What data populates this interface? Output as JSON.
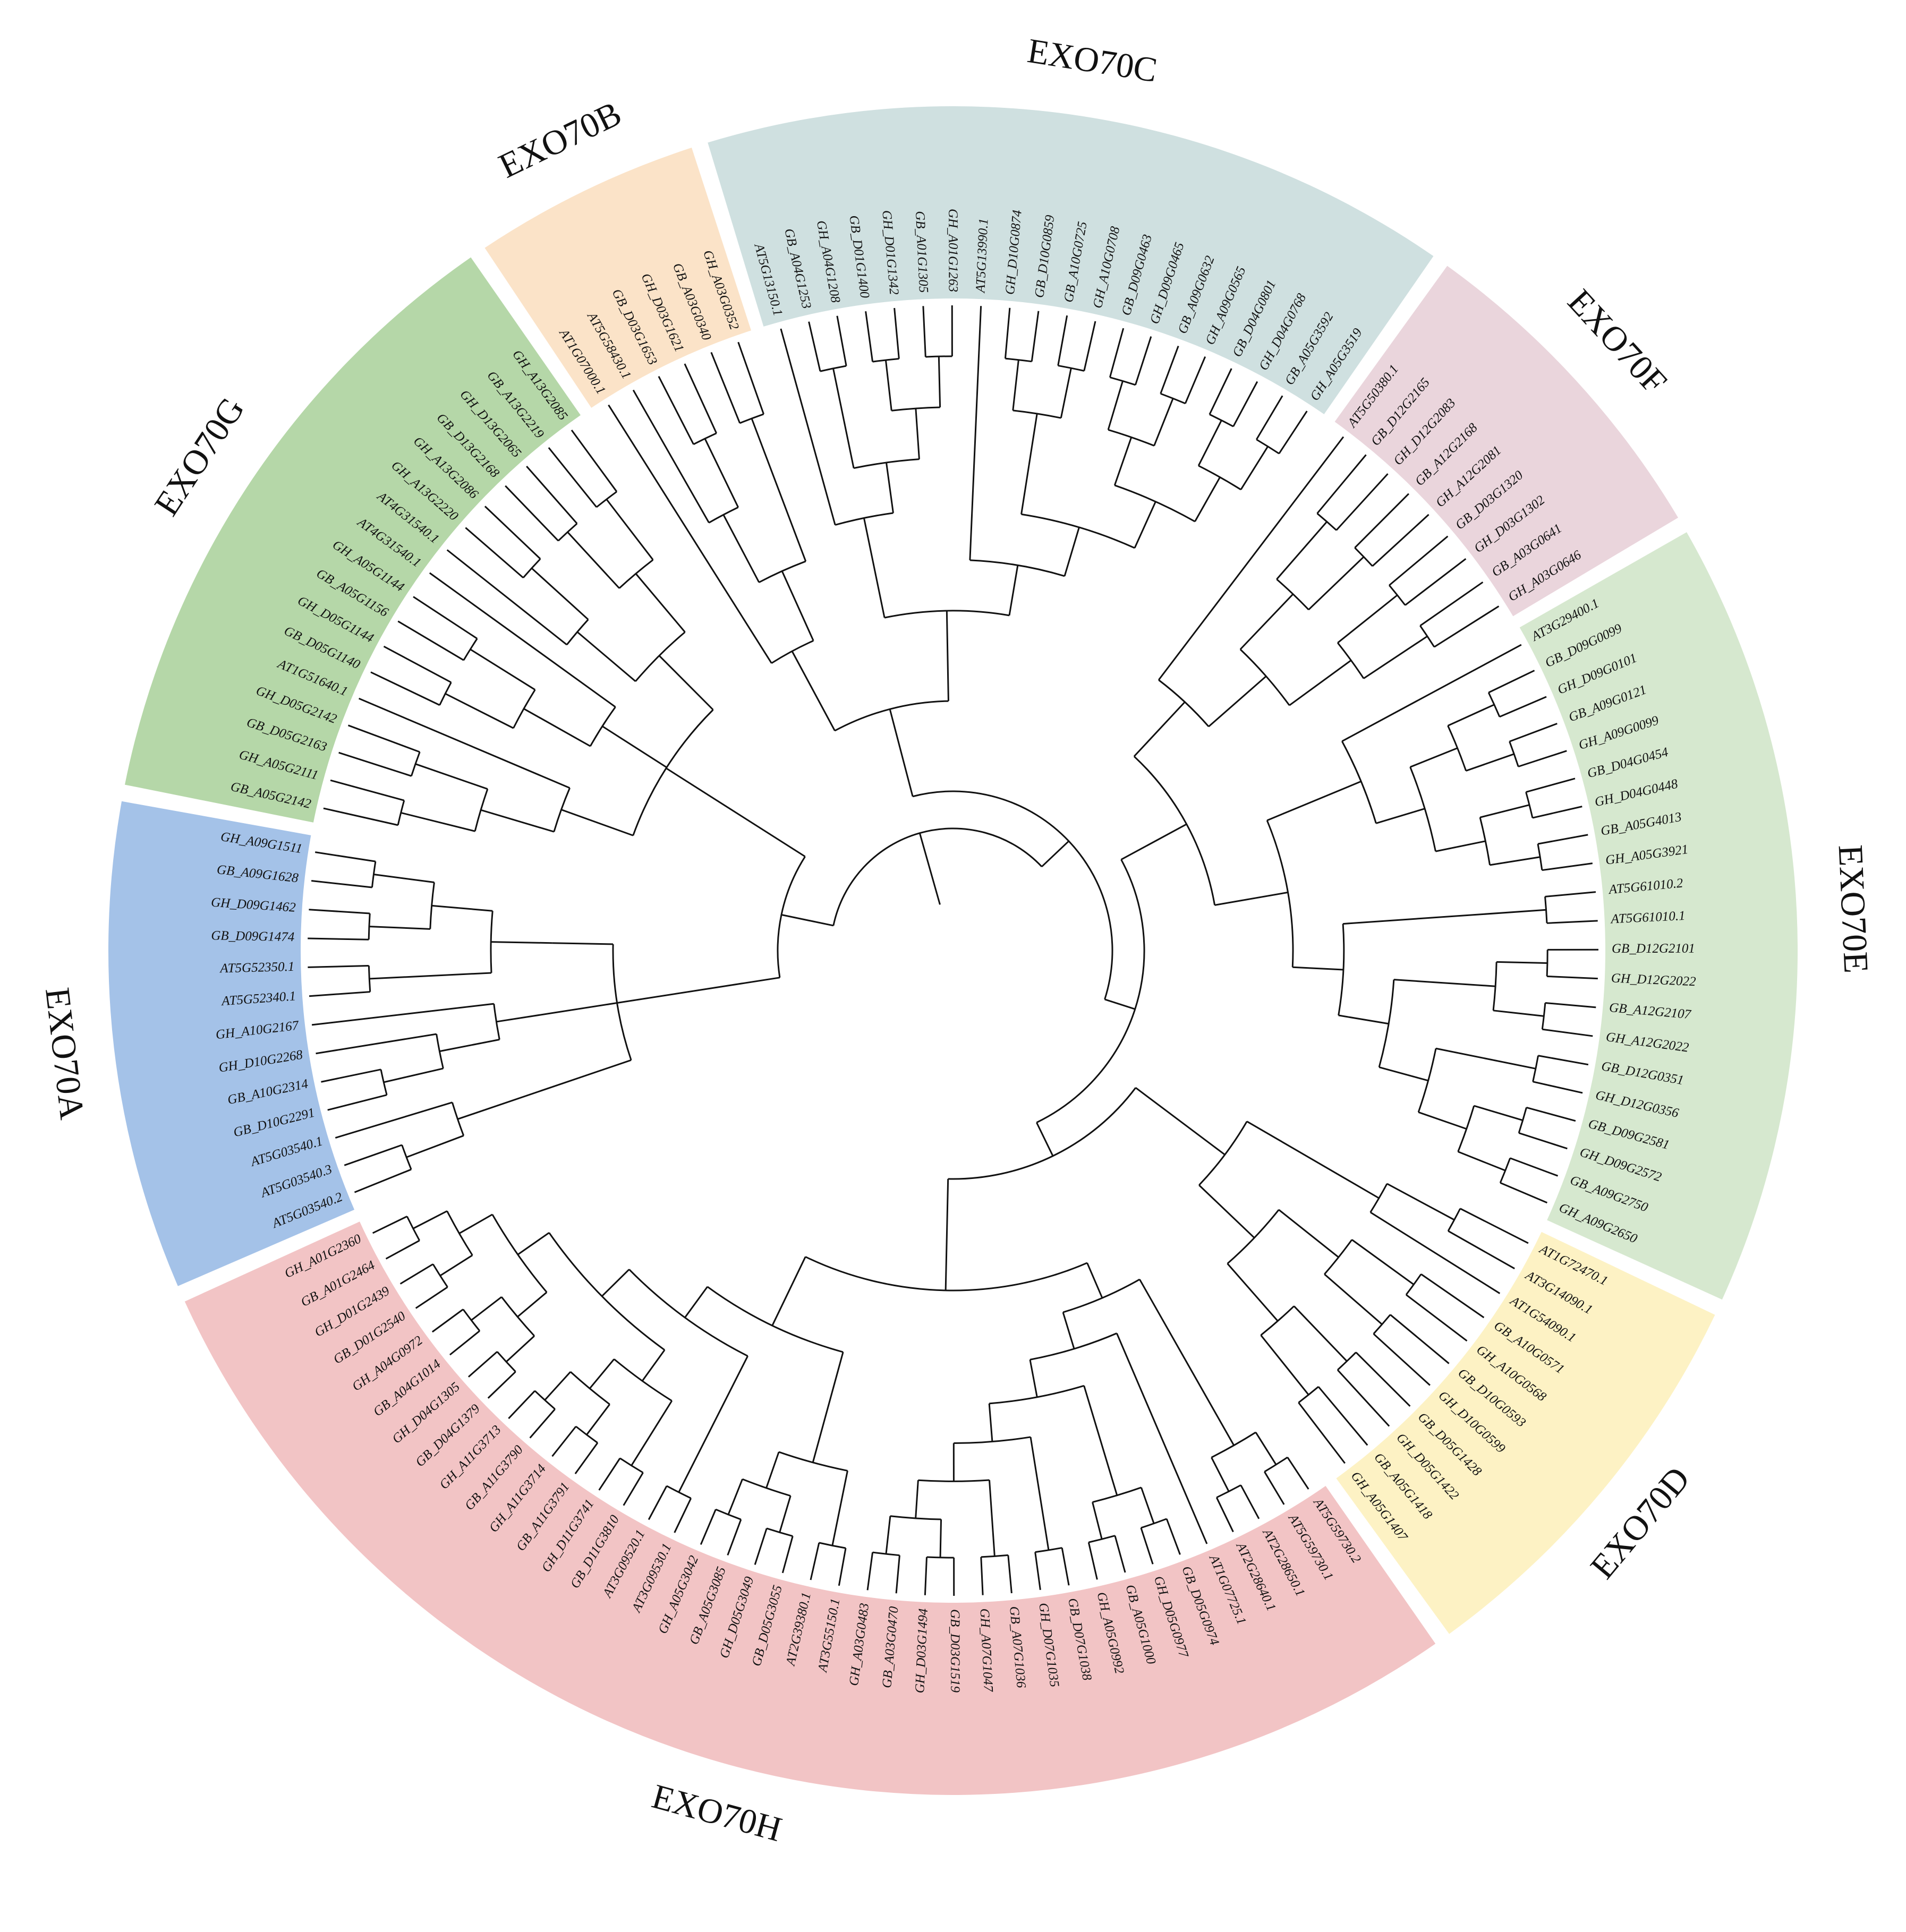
{
  "clades": [
    {
      "name": "EXO70A",
      "color": "#a4c2e8",
      "leaves": [
        "AT5G03540.2",
        "AT5G03540.3",
        "AT5G03540.1",
        "GB_D10G2291",
        "GB_A10G2314",
        "GH_D10G2268",
        "GH_A10G2167",
        "AT5G52340.1",
        "AT5G52350.1",
        "GB_D09G1474",
        "GH_D09G1462",
        "GB_A09G1628",
        "GH_A09G1511"
      ]
    },
    {
      "name": "EXO70G",
      "color": "#b5d7a8",
      "leaves": [
        "GB_A05G2142",
        "GH_A05G2111",
        "GB_D05G2163",
        "GH_D05G2142",
        "AT1G51640.1",
        "GB_D05G1140",
        "GH_D05G1144",
        "GB_A05G1156",
        "GH_A05G1144",
        "AT4G31540.1",
        "AT4G31540.1",
        "GH_A13G2220",
        "GH_A13G2086",
        "GB_D13G2168",
        "GH_D13G2065",
        "GB_A13G2219",
        "GH_A13G2085"
      ]
    },
    {
      "name": "EXO70B",
      "color": "#fbe3c8",
      "leaves": [
        "AT1G07000.1",
        "AT5G58430.1",
        "GB_D03G1653",
        "GH_D03G1621",
        "GB_A03G0340",
        "GH_A03G0352"
      ]
    },
    {
      "name": "EXO70C",
      "color": "#cfe0e0",
      "leaves": [
        "AT5G13150.1",
        "GB_A04G1253",
        "GH_A04G1208",
        "GB_D01G1400",
        "GH_D01G1342",
        "GB_A01G1305",
        "GH_A01G1263",
        "AT5G13990.1",
        "GH_D10G0874",
        "GB_D10G0859",
        "GB_A10G0725",
        "GH_A10G0708",
        "GB_D09G0463",
        "GH_D09G0465",
        "GB_A09G0632",
        "GH_A09G0565",
        "GB_D04G0801",
        "GH_D04G0768",
        "GB_A05G3592",
        "GH_A05G3519"
      ]
    },
    {
      "name": "EXO70F",
      "color": "#ead5dc",
      "leaves": [
        "AT5G50380.1",
        "GB_D12G2165",
        "GH_D12G2083",
        "GB_A12G2168",
        "GH_A12G2081",
        "GB_D03G1320",
        "GH_D03G1302",
        "GB_A03G0641",
        "GH_A03G0646"
      ]
    },
    {
      "name": "EXO70E",
      "color": "#d6e8cf",
      "leaves": [
        "AT3G29400.1",
        "GB_D09G0099",
        "GH_D09G0101",
        "GB_A09G0121",
        "GH_A09G0099",
        "GB_D04G0454",
        "GH_D04G0448",
        "GB_A05G4013",
        "GH_A05G3921",
        "AT5G61010.2",
        "AT5G61010.1",
        "GB_D12G2101",
        "GH_D12G2022",
        "GB_A12G2107",
        "GH_A12G2022",
        "GB_D12G0351",
        "GH_D12G0356",
        "GB_D09G2581",
        "GH_D09G2572",
        "GB_A09G2750",
        "GH_A09G2650"
      ]
    },
    {
      "name": "EXO70D",
      "color": "#fdf2c4",
      "leaves": [
        "AT1G72470.1",
        "AT3G14090.1",
        "AT1G54090.1",
        "GB_A10G0571",
        "GH_A10G0568",
        "GB_D10G0593",
        "GH_D10G0599",
        "GB_D05G1428",
        "GH_D05G1422",
        "GB_A05G1418",
        "GH_A05G1407"
      ]
    },
    {
      "name": "EXO70H",
      "color": "#f2c4c5",
      "leaves": [
        "AT5G59730.2",
        "AT5G59730.1",
        "AT2G28650.1",
        "AT2G28640.1",
        "AT1G07725.1",
        "GB_D05G0974",
        "GH_D05G0977",
        "GB_A05G1000",
        "GH_A05G0992",
        "GB_D07G1038",
        "GH_D07G1035",
        "GB_A07G1036",
        "GH_A07G1047",
        "GB_D03G1519",
        "GH_D03G1494",
        "GB_A03G0470",
        "GH_A03G0483",
        "AT3G55150.1",
        "AT2G39380.1",
        "GB_D05G3055",
        "GH_D05G3049",
        "GB_A05G3085",
        "GH_A05G3042",
        "AT3G09530.1",
        "AT3G09520.1",
        "GB_D11G3810",
        "GH_D11G3741",
        "GB_A11G3791",
        "GH_A11G3714",
        "GB_A11G3790",
        "GH_A11G3713",
        "GB_D04G1379",
        "GH_D04G1305",
        "GB_A04G1014",
        "GH_A04G0972",
        "GB_D01G2540",
        "GH_D01G2439",
        "GB_A01G2464",
        "GH_A01G2360"
      ]
    }
  ],
  "tree": [
    [
      "EXO70A",
      [
        [
          [
            0,
            1
          ],
          2
        ],
        [
          [
            [
              3,
              4
            ],
            5
          ],
          6
        ],
        [
          [
            [
              7,
              8
            ],
            [
              [
                9,
                10
              ],
              [
                11,
                12
              ]
            ]
          ]
        ]
      ]
    ],
    [
      "EXO70G",
      [
        [
          [
            [
              0,
              1
            ],
            [
              2,
              3
            ]
          ],
          4
        ],
        [
          [
            [
              5,
              6
            ],
            [
              7,
              8
            ]
          ],
          9
        ],
        [
          [
            10,
            [
              11,
              12
            ]
          ],
          [
            [
              13,
              14
            ],
            [
              15,
              16
            ]
          ]
        ]
      ]
    ],
    [
      "EXO70B",
      [
        0,
        [
          [
            1,
            [
              2,
              3
            ]
          ],
          [
            4,
            5
          ]
        ]
      ]
    ],
    [
      "EXO70C",
      [
        [
          0,
          [
            [
              1,
              2
            ],
            [
              [
                3,
                4
              ],
              [
                5,
                6
              ]
            ]
          ]
        ],
        [
          7,
          [
            [
              [
                8,
                9
              ],
              [
                10,
                11
              ]
            ],
            [
              [
                [
                  12,
                  13
                ],
                [
                  14,
                  15
                ]
              ],
              [
                [
                  16,
                  17
                ],
                [
                  18,
                  19
                ]
              ]
            ]
          ]
        ]
      ]
    ],
    [
      "EXO70F",
      [
        0,
        [
          [
            [
              1,
              2
            ],
            [
              3,
              4
            ]
          ],
          [
            [
              5,
              6
            ],
            [
              7,
              8
            ]
          ]
        ]
      ]
    ],
    [
      "EXO70E",
      [
        [
          0,
          [
            [
              [
                1,
                2
              ],
              [
                3,
                4
              ]
            ],
            [
              [
                5,
                6
              ],
              [
                7,
                8
              ]
            ]
          ]
        ],
        [
          [
            9,
            10
          ],
          [
            [
              [
                11,
                12
              ],
              [
                13,
                14
              ]
            ],
            [
              [
                15,
                16
              ],
              [
                [
                  17,
                  18
                ],
                [
                  19,
                  20
                ]
              ]
            ]
          ]
        ]
      ]
    ],
    [
      "EXO70D",
      [
        [
          [
            0,
            1
          ],
          2
        ],
        [
          [
            [
              3,
              4
            ],
            [
              5,
              6
            ]
          ],
          [
            [
              7,
              8
            ],
            [
              9,
              10
            ]
          ]
        ]
      ]
    ],
    [
      "EXO70H",
      [
        [
          [
            [
              0,
              1
            ],
            [
              2,
              3
            ]
          ],
          [
            4,
            [
              [
                [
                  5,
                  6
                ],
                [
                  7,
                  8
                ]
              ],
              [
                [
                  9,
                  10
                ],
                [
                  [
                    11,
                    12
                  ],
                  [
                    [
                      13,
                      14
                    ],
                    [
                      15,
                      16
                    ]
                  ]
                ]
              ]
            ]
          ]
        ],
        [
          [
            [
              17,
              18
            ],
            [
              [
                19,
                20
              ],
              [
                21,
                22
              ]
            ]
          ],
          [
            [
              23,
              24
            ],
            [
              [
                [
                  25,
                  26
                ],
                [
                  [
                    27,
                    28
                  ],
                  [
                    29,
                    30
                  ]
                ]
              ],
              [
                [
                  [
                    31,
                    32
                  ],
                  [
                    33,
                    34
                  ]
                ],
                [
                  [
                    35,
                    36
                  ],
                  [
                    37,
                    38
                  ]
                ]
              ]
            ]
          ]
        ]
      ]
    ]
  ]
}
